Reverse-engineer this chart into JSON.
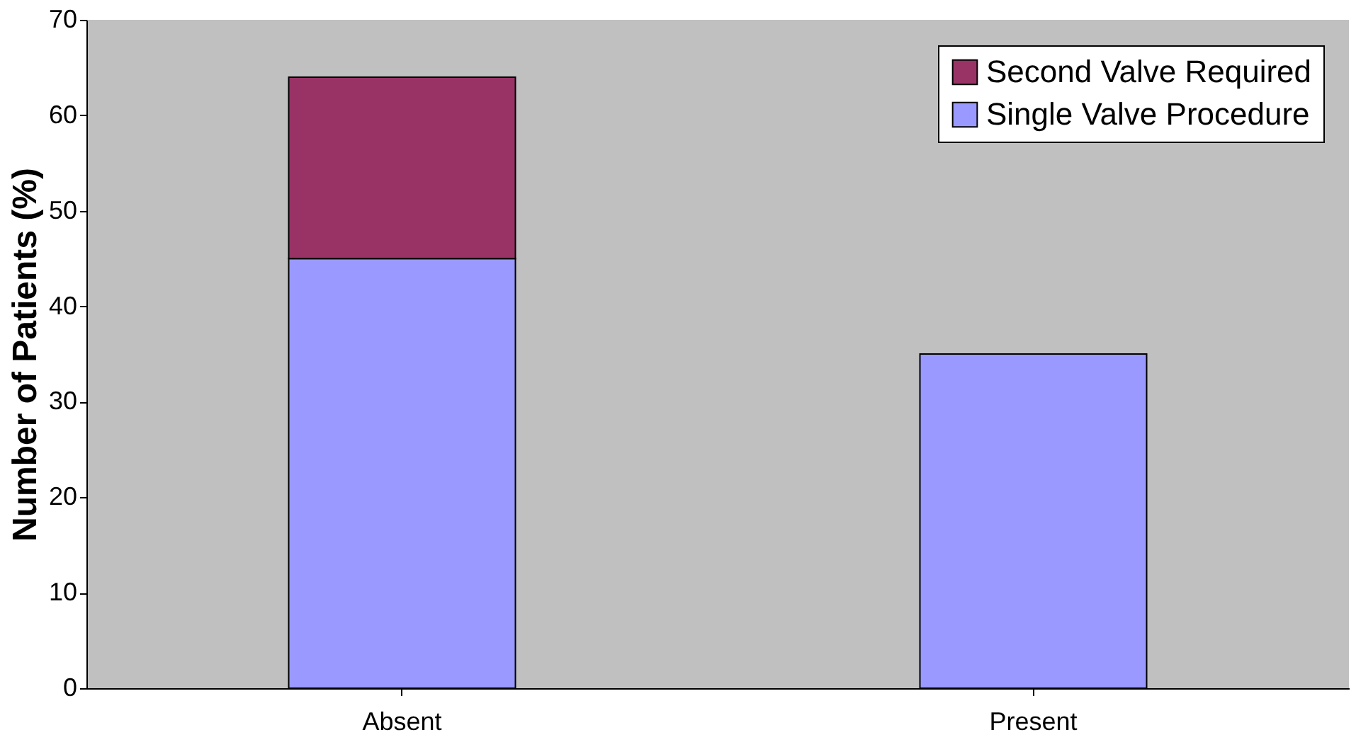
{
  "chart_data": {
    "type": "bar",
    "ylabel": "Number of Patients (%)",
    "categories": [
      "Absent",
      "Present"
    ],
    "stacked": true,
    "series": [
      {
        "name": "Single Valve Procedure",
        "color": "#9999ff",
        "values": [
          45,
          35
        ]
      },
      {
        "name": "Second Valve Required",
        "color": "#993366",
        "values": [
          19,
          null
        ]
      }
    ],
    "ylim": [
      0,
      70
    ],
    "yticks": [
      0,
      10,
      20,
      30,
      40,
      50,
      60,
      70
    ],
    "grid": false,
    "legend": "top right"
  }
}
